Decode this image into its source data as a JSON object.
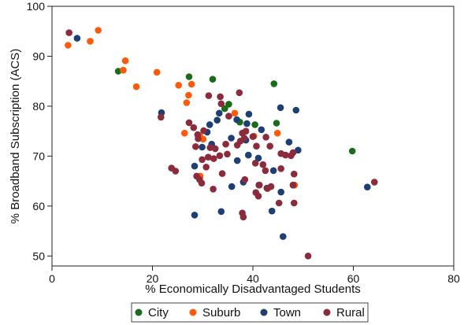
{
  "chart_data": {
    "type": "scatter",
    "title": "",
    "xlabel": "% Economically Disadvantaged Students",
    "ylabel": "% Broadband Subscription (ACS)",
    "xlim": [
      0,
      80
    ],
    "ylim": [
      48,
      100
    ],
    "xticks": [
      0,
      20,
      40,
      60,
      80
    ],
    "yticks": [
      50,
      60,
      70,
      80,
      90,
      100
    ],
    "grid": false,
    "legend_position": "bottom",
    "series": [
      {
        "name": "City",
        "color": "#1a6b1a",
        "points": [
          [
            13.2,
            87.0
          ],
          [
            27.3,
            85.9
          ],
          [
            32.0,
            85.4
          ],
          [
            44.2,
            84.5
          ],
          [
            34.4,
            79.5
          ],
          [
            35.2,
            80.4
          ],
          [
            37.4,
            76.8
          ],
          [
            40.4,
            76.3
          ],
          [
            44.7,
            76.6
          ],
          [
            59.8,
            71.0
          ]
        ]
      },
      {
        "name": "Suburb",
        "color": "#ff5a0a",
        "points": [
          [
            3.2,
            92.2
          ],
          [
            9.2,
            95.2
          ],
          [
            7.6,
            93.0
          ],
          [
            14.6,
            89.1
          ],
          [
            14.2,
            87.2
          ],
          [
            20.9,
            86.8
          ],
          [
            16.8,
            83.9
          ],
          [
            25.2,
            84.2
          ],
          [
            27.8,
            84.4
          ],
          [
            27.2,
            82.2
          ],
          [
            26.8,
            80.7
          ],
          [
            26.4,
            74.6
          ],
          [
            36.4,
            78.6
          ],
          [
            29.4,
            74.1
          ],
          [
            30.1,
            73.4
          ],
          [
            44.9,
            74.6
          ],
          [
            40.2,
            74.0
          ],
          [
            48.3,
            64.2
          ],
          [
            29.5,
            66.0
          ]
        ]
      },
      {
        "name": "Town",
        "color": "#1d3f73",
        "points": [
          [
            5.0,
            93.6
          ],
          [
            21.8,
            78.7
          ],
          [
            33.3,
            78.6
          ],
          [
            39.2,
            78.4
          ],
          [
            36.8,
            77.3
          ],
          [
            32.9,
            77.2
          ],
          [
            38.8,
            76.5
          ],
          [
            31.4,
            76.3
          ],
          [
            45.5,
            79.7
          ],
          [
            48.6,
            79.2
          ],
          [
            30.9,
            74.8
          ],
          [
            29.9,
            71.8
          ],
          [
            31.8,
            72.4
          ],
          [
            35.7,
            73.6
          ],
          [
            38.6,
            73.2
          ],
          [
            41.7,
            75.3
          ],
          [
            36.9,
            69.1
          ],
          [
            39.1,
            70.2
          ],
          [
            41.1,
            69.6
          ],
          [
            47.2,
            72.8
          ],
          [
            49.0,
            71.2
          ],
          [
            44.1,
            67.1
          ],
          [
            41.2,
            64.2
          ],
          [
            38.1,
            64.8
          ],
          [
            28.4,
            68.0
          ],
          [
            35.8,
            63.9
          ],
          [
            45.6,
            62.8
          ],
          [
            48.0,
            64.2
          ],
          [
            42.8,
            63.6
          ],
          [
            46.0,
            53.9
          ],
          [
            28.4,
            58.2
          ],
          [
            33.7,
            58.9
          ],
          [
            43.8,
            59.0
          ],
          [
            62.8,
            63.8
          ]
        ]
      },
      {
        "name": "Rural",
        "color": "#8b2b3c",
        "points": [
          [
            3.4,
            94.7
          ],
          [
            21.7,
            77.8
          ],
          [
            31.2,
            82.1
          ],
          [
            33.5,
            81.9
          ],
          [
            33.7,
            80.5
          ],
          [
            37.3,
            82.7
          ],
          [
            27.3,
            76.7
          ],
          [
            28.2,
            75.7
          ],
          [
            30.2,
            75.1
          ],
          [
            29.0,
            74.3
          ],
          [
            29.1,
            73.5
          ],
          [
            28.6,
            71.9
          ],
          [
            31.5,
            71.7
          ],
          [
            35.2,
            78.0
          ],
          [
            34.6,
            72.4
          ],
          [
            36.9,
            72.2
          ],
          [
            37.5,
            73.0
          ],
          [
            38.3,
            73.6
          ],
          [
            37.9,
            74.6
          ],
          [
            38.6,
            75.0
          ],
          [
            40.0,
            73.9
          ],
          [
            40.7,
            72.0
          ],
          [
            42.6,
            73.8
          ],
          [
            43.4,
            72.0
          ],
          [
            45.6,
            70.5
          ],
          [
            46.5,
            70.2
          ],
          [
            47.6,
            70.1
          ],
          [
            48.0,
            70.7
          ],
          [
            32.5,
            71.5
          ],
          [
            33.4,
            70.1
          ],
          [
            34.9,
            70.4
          ],
          [
            32.2,
            69.5
          ],
          [
            31.1,
            69.8
          ],
          [
            29.9,
            69.3
          ],
          [
            30.7,
            67.8
          ],
          [
            28.8,
            66.0
          ],
          [
            29.4,
            65.3
          ],
          [
            29.8,
            64.6
          ],
          [
            32.1,
            63.4
          ],
          [
            23.8,
            67.6
          ],
          [
            24.6,
            67.0
          ],
          [
            33.9,
            66.5
          ],
          [
            38.4,
            65.3
          ],
          [
            40.5,
            68.6
          ],
          [
            42.0,
            68.3
          ],
          [
            42.5,
            67.1
          ],
          [
            45.6,
            67.5
          ],
          [
            48.2,
            66.4
          ],
          [
            41.3,
            64.2
          ],
          [
            42.9,
            63.5
          ],
          [
            43.6,
            63.9
          ],
          [
            40.6,
            62.7
          ],
          [
            41.1,
            62.0
          ],
          [
            45.2,
            60.6
          ],
          [
            48.2,
            60.6
          ],
          [
            37.9,
            58.6
          ],
          [
            38.1,
            57.8
          ],
          [
            48.0,
            64.2
          ],
          [
            51.0,
            50.0
          ],
          [
            64.2,
            64.8
          ]
        ]
      }
    ]
  }
}
